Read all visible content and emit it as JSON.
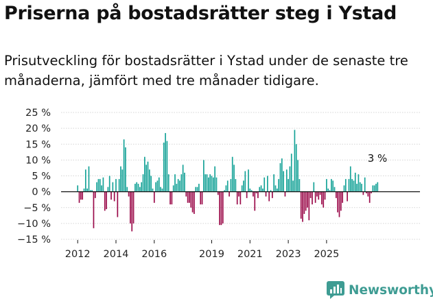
{
  "chart_data": {
    "type": "bar",
    "title": "Priserna på bostadsrätter steg i Ystad",
    "subtitle": "Prisutveckling för bostadsrätter i Ystad under de senaste tre månaderna, jämfört med tre månader tidigare.",
    "ylim": [
      -15,
      25
    ],
    "y_ticks": [
      25,
      20,
      15,
      10,
      5,
      0,
      -5,
      -10,
      -15
    ],
    "y_tick_labels": [
      "25 %",
      "20 %",
      "15 %",
      "10 %",
      "5 %",
      "0 %",
      "−5 %",
      "−10 %",
      "−15 %"
    ],
    "x_start": "2012-01",
    "x_ticks": [
      {
        "label": "2012",
        "value": 2012
      },
      {
        "label": "2014",
        "value": 2014
      },
      {
        "label": "2016",
        "value": 2016
      },
      {
        "label": "2019",
        "value": 2019
      },
      {
        "label": "2021",
        "value": 2021
      },
      {
        "label": "2023",
        "value": 2023
      },
      {
        "label": "2025",
        "value": 2025
      }
    ],
    "colors": {
      "positive": "#17a398",
      "negative": "#9b0b4a",
      "grid": "#d4d4d4",
      "axis": "#111111"
    },
    "annotation": {
      "label": "3 %",
      "value": 3
    },
    "values": [
      2,
      -3.5,
      -2.5,
      -2.5,
      1,
      7,
      1,
      8,
      0.5,
      0.5,
      -11.5,
      -2,
      3,
      4,
      4,
      2,
      4.5,
      -6,
      -5.5,
      1.5,
      5,
      -2.5,
      3,
      -3,
      4,
      -8,
      4,
      8,
      7,
      16.5,
      14,
      1.5,
      -1.5,
      -10,
      -12.5,
      -10,
      2.5,
      3,
      2.5,
      1.5,
      3,
      5.5,
      11,
      8.5,
      9.5,
      7,
      5,
      1,
      -3.5,
      3,
      3.5,
      4.5,
      1.5,
      1,
      15.5,
      18.5,
      16,
      5.5,
      -4,
      -4,
      2,
      5.5,
      2.5,
      4,
      3.5,
      5.5,
      8.5,
      6,
      -1.5,
      -3.5,
      -3.5,
      -5,
      -6.5,
      -7,
      1.5,
      1.5,
      2.5,
      -4,
      -4,
      10,
      5.5,
      5.5,
      4.5,
      5.5,
      5,
      4.5,
      8,
      4.5,
      -1,
      -10.5,
      -10.5,
      -10,
      0.5,
      2,
      3.5,
      -1.5,
      4,
      11,
      8.5,
      4,
      -4,
      -1.5,
      -4,
      2,
      3.5,
      6.5,
      -2,
      7,
      1,
      0.5,
      -1.5,
      -6,
      -0.5,
      -2,
      1.5,
      2,
      1,
      4.5,
      -1.5,
      5,
      -3,
      0.5,
      -2,
      5.5,
      2,
      1,
      4,
      9,
      10.5,
      6.5,
      -1.5,
      7,
      4,
      8,
      12,
      3.5,
      19.5,
      15,
      10,
      4,
      -8.5,
      -9.5,
      -7,
      -6,
      -5,
      -9,
      -2,
      -4,
      3,
      -3.5,
      -1.5,
      -2.5,
      -1,
      -4,
      -5,
      -2.5,
      4,
      1,
      0.5,
      4,
      3.5,
      1.5,
      -2,
      -6.5,
      -8,
      -6,
      -3.5,
      2,
      4,
      -3,
      4,
      8,
      4,
      3.5,
      6,
      2.5,
      5.5,
      3,
      2.5,
      -1,
      4.5,
      -0.5,
      -1.5,
      -3.5,
      -0.5,
      2,
      2,
      2.5,
      3
    ]
  },
  "brand": {
    "name": "Newsworthy",
    "icon": "newsworthy-logo-icon"
  }
}
